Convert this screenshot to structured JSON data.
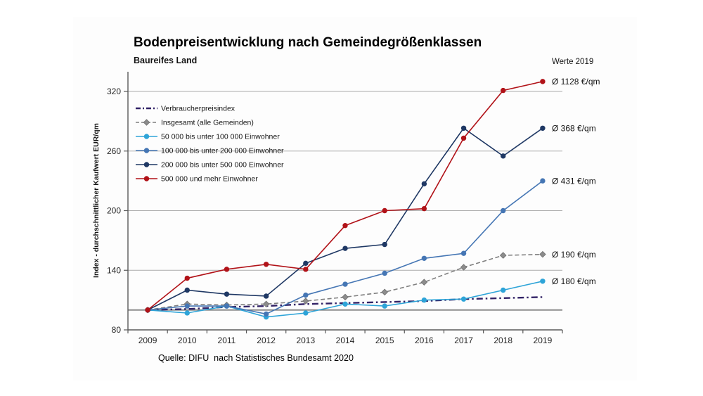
{
  "chart": {
    "title": "Bodenpreisentwicklung nach Gemeindegrößenklassen",
    "subtitle": "Baureifes Land",
    "values_header": "Werte 2019",
    "source": "Quelle: DIFU  nach Statistisches Bundesamt 2020"
  },
  "chart_data": {
    "type": "line",
    "title": "Bodenpreisentwicklung nach Gemeindegrößenklassen",
    "subtitle": "Baureifes Land",
    "categories": [
      "2009",
      "2010",
      "2011",
      "2012",
      "2013",
      "2014",
      "2015",
      "2016",
      "2017",
      "2018",
      "2019"
    ],
    "xlabel": "",
    "ylabel": "Index - durchschnittlicher Kaufwert EUR/qm",
    "ylim": [
      80,
      340
    ],
    "yticks": [
      80,
      140,
      200,
      260,
      320
    ],
    "baseline": 100,
    "grid": true,
    "legend_position": "top-left-inside",
    "axis_color": "#595959",
    "gridline_color": "#ababab",
    "baseline_color": "#7d7d7d",
    "series": [
      {
        "name": "Verbraucherpreisindex",
        "values": [
          100,
          101,
          103,
          104,
          106,
          107,
          108,
          109,
          111,
          112,
          113
        ],
        "color": "#312266",
        "style": "dashdot",
        "marker": "none",
        "annotation_2019": null
      },
      {
        "name": "Insgesamt (alle Gemeinden)",
        "values": [
          100,
          106,
          105,
          106,
          109,
          113,
          118,
          128,
          143,
          155,
          156
        ],
        "color": "#7f7f7f",
        "style": "dashed",
        "marker": "diamond",
        "annotation_2019": "Ø 190 €/qm"
      },
      {
        "name": "50 000 bis unter 100 000 Einwohner",
        "values": [
          100,
          97,
          104,
          93,
          97,
          106,
          104,
          110,
          111,
          120,
          129
        ],
        "color": "#2ea4d8",
        "style": "solid",
        "marker": "circle",
        "annotation_2019": "Ø 180 €/qm"
      },
      {
        "name": "100 000 bis unter 200 000 Einwohner",
        "values": [
          100,
          104,
          104,
          96,
          115,
          126,
          137,
          152,
          157,
          200,
          230
        ],
        "color": "#4576b4",
        "style": "solid",
        "marker": "circle",
        "annotation_2019": "Ø 431 €/qm"
      },
      {
        "name": "200 000 bis unter 500 000 Einwohner",
        "values": [
          100,
          120,
          116,
          114,
          147,
          162,
          166,
          227,
          283,
          255,
          283
        ],
        "color": "#1f3864",
        "style": "solid",
        "marker": "circle",
        "annotation_2019": "Ø 368 €/qm"
      },
      {
        "name": "500 000 und mehr Einwohner",
        "values": [
          100,
          132,
          141,
          146,
          141,
          185,
          200,
          202,
          273,
          321,
          330
        ],
        "color": "#b11218",
        "style": "solid",
        "marker": "circle",
        "annotation_2019": "Ø 1128 €/qm"
      }
    ]
  }
}
